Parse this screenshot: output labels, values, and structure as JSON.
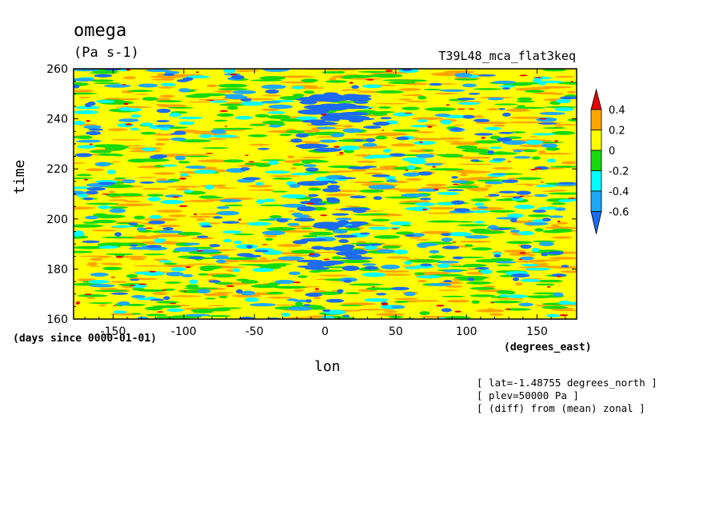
{
  "title": "omega",
  "units": "(Pa s-1)",
  "run_name": "T39L48_mca_flat3keq",
  "info_lines": [
    "[ lat=-1.48755 degrees_north ]",
    "[ plev=50000 Pa ]",
    "[ (diff) from (mean) zonal ]"
  ],
  "chart_data": {
    "type": "heatmap",
    "title": "omega",
    "xlabel": "lon",
    "ylabel": "time",
    "x_units": "(degrees_east)",
    "y_units": "(days since 0000-01-01)",
    "xlim": [
      -178,
      178
    ],
    "ylim": [
      160,
      260
    ],
    "x_ticks": [
      -150,
      -100,
      -50,
      0,
      50,
      100,
      150
    ],
    "y_ticks": [
      160,
      180,
      200,
      220,
      240,
      260
    ],
    "colorbar": {
      "levels": [
        -0.6,
        -0.4,
        -0.2,
        0,
        0.2,
        0.4
      ],
      "labels": [
        "-0.6",
        "-0.4",
        "-0.2",
        "0",
        "0.2",
        "0.4"
      ],
      "colors": [
        "#1c6bf0",
        "#1fa8f5",
        "#00ffff",
        "#17d90f",
        "#ffff00",
        "#ffa500",
        "#e60000"
      ],
      "extend": "both"
    },
    "field_description_bins": {
      "dominant_value_range": [
        0,
        0.2
      ],
      "features": [
        {
          "lon_center": 5,
          "time_range": [
            180,
            230
          ],
          "value": -0.6
        },
        {
          "lon_center": 5,
          "time_range": [
            238,
            250
          ],
          "value": -0.6
        }
      ]
    }
  }
}
